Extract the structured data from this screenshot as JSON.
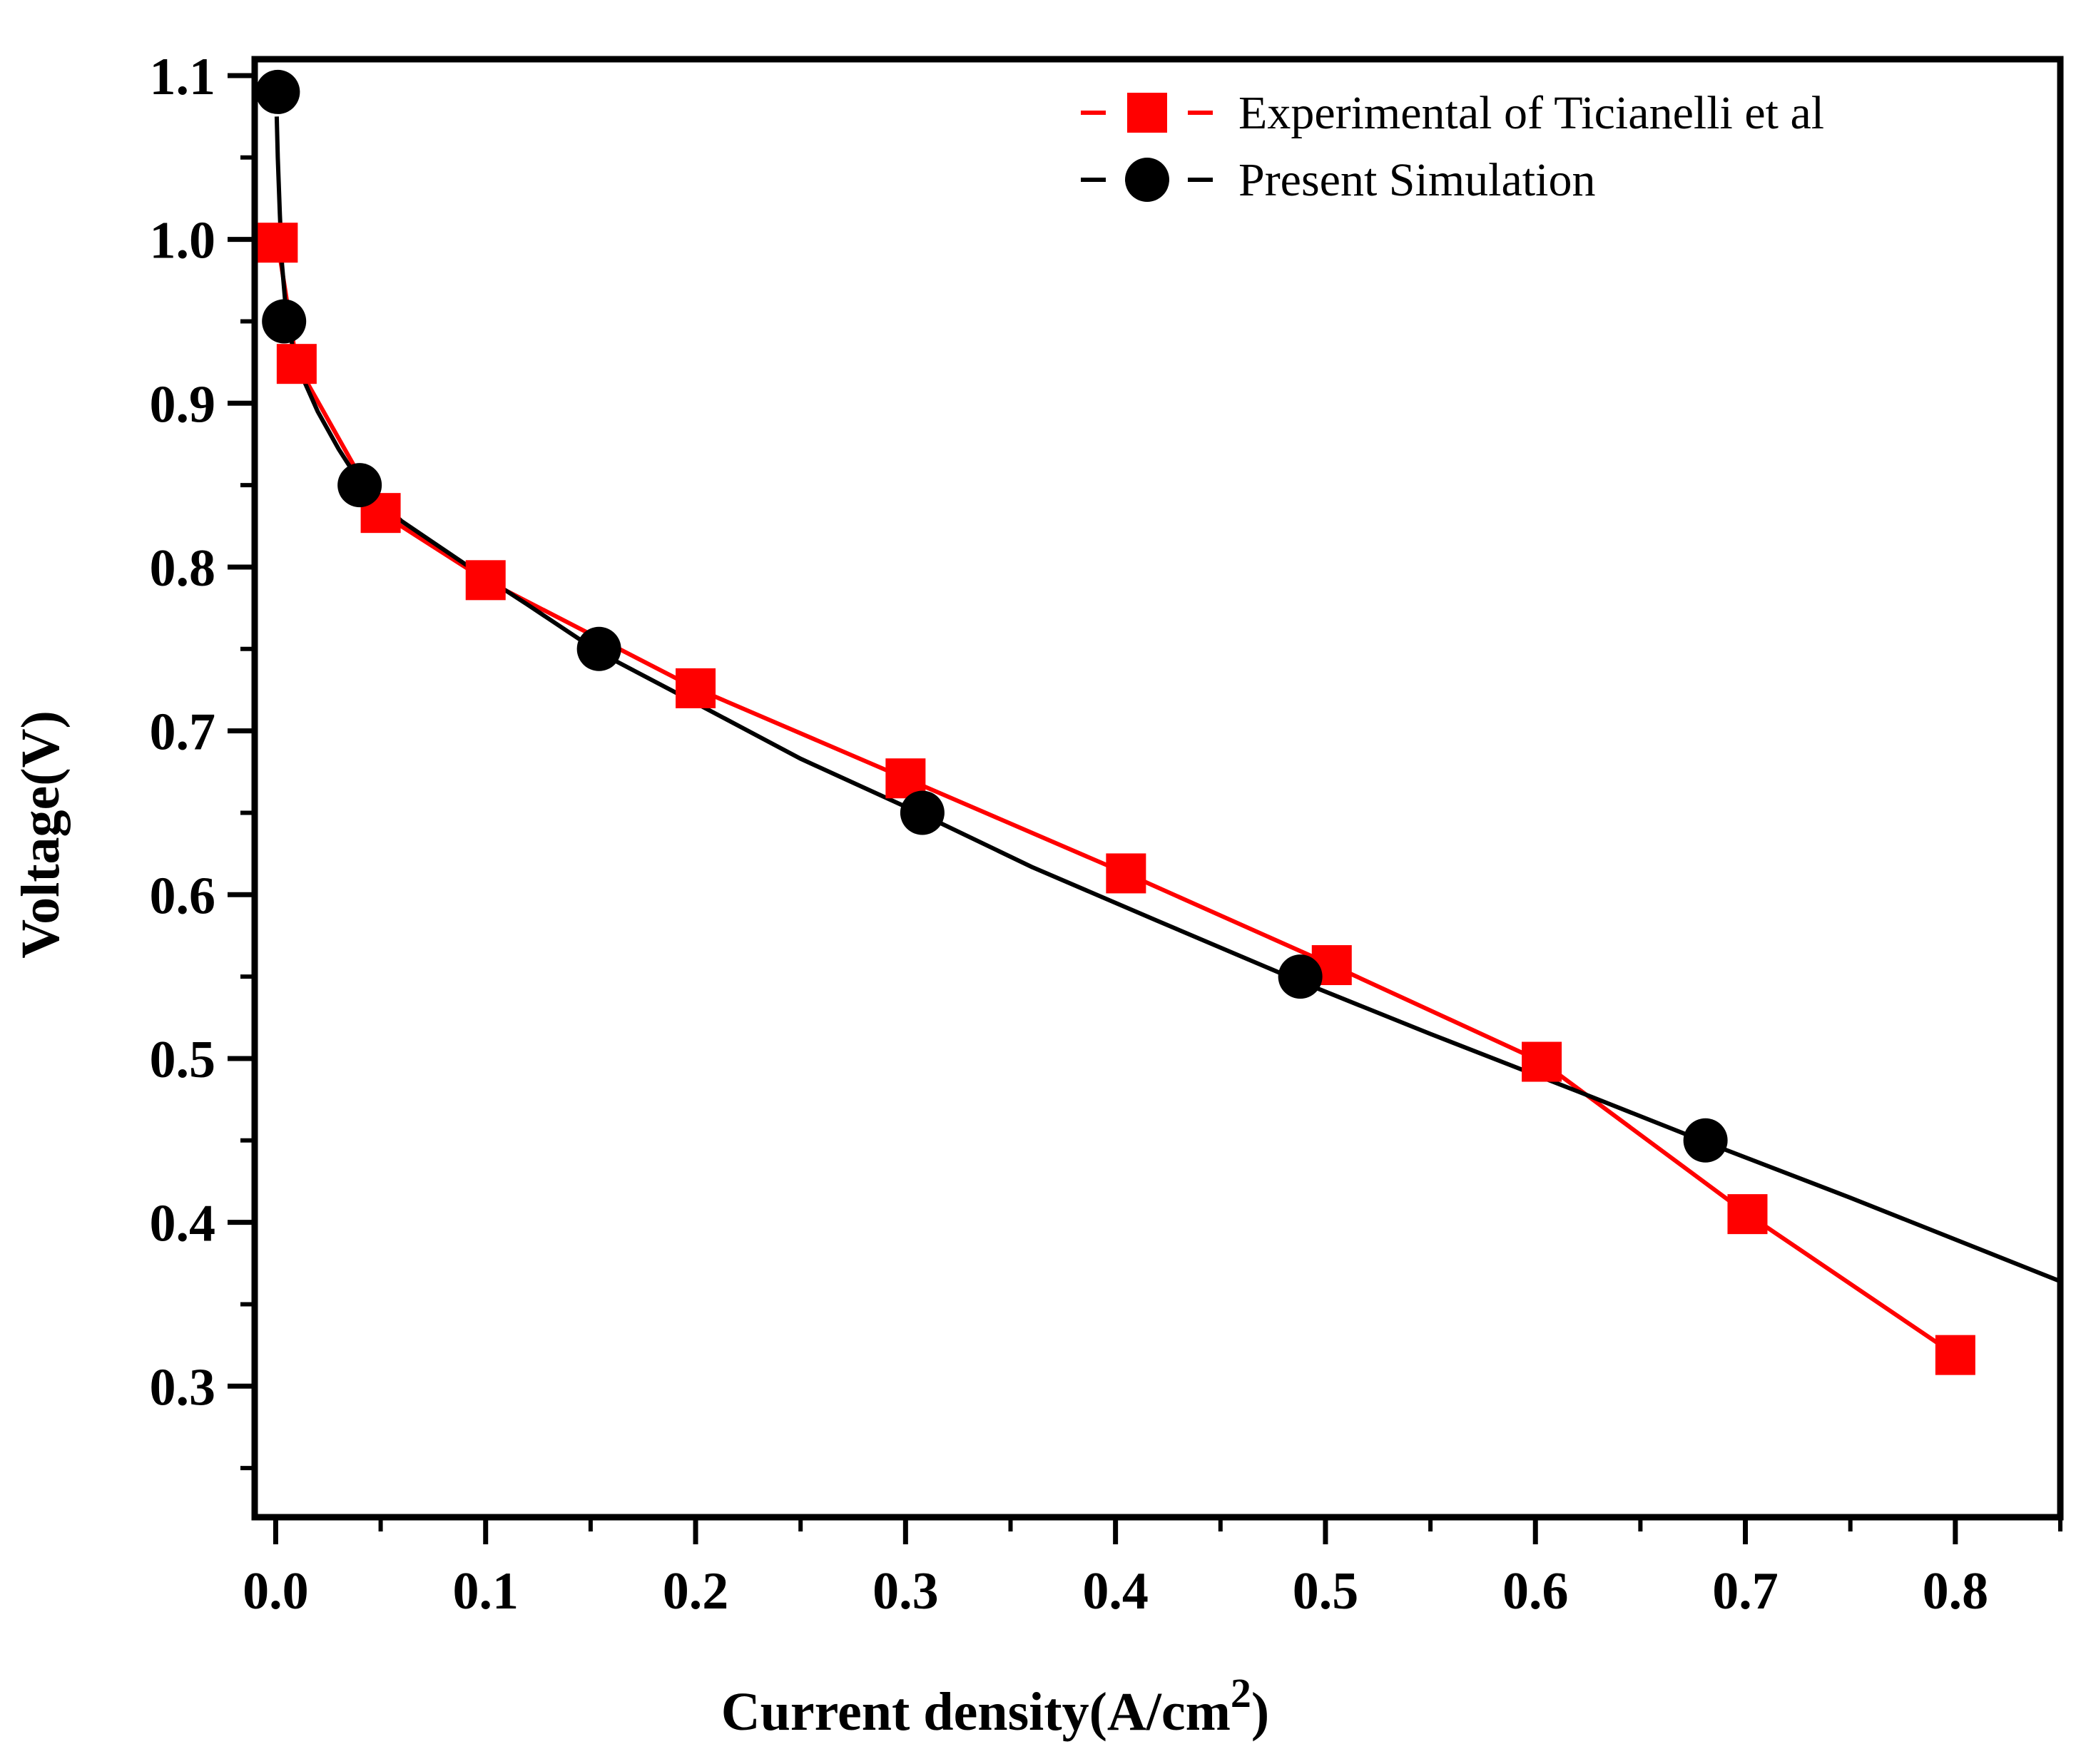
{
  "chart_data": {
    "type": "line",
    "title": "",
    "xlabel": "Current density(A/cm",
    "xlabel_superscript": "2",
    "xlabel_suffix": ")",
    "ylabel": "Voltage(V)",
    "xlim": [
      -0.01,
      0.85
    ],
    "ylim": [
      0.22,
      1.11
    ],
    "x_ticks": [
      0.0,
      0.1,
      0.2,
      0.3,
      0.4,
      0.5,
      0.6,
      0.7,
      0.8
    ],
    "x_tick_labels": [
      "0.0",
      "0.1",
      "0.2",
      "0.3",
      "0.4",
      "0.5",
      "0.6",
      "0.7",
      "0.8"
    ],
    "y_ticks": [
      0.3,
      0.4,
      0.5,
      0.6,
      0.7,
      0.8,
      0.9,
      1.0,
      1.1
    ],
    "y_tick_labels": [
      "0.3",
      "0.4",
      "0.5",
      "0.6",
      "0.7",
      "0.8",
      "0.9",
      "1.0",
      "1.1"
    ],
    "grid": false,
    "legend_position": "top-right",
    "series": [
      {
        "name": "Experimental of Ticianelli et al",
        "color": "#ff0000",
        "marker": "square",
        "x": [
          0.001,
          0.01,
          0.05,
          0.1,
          0.2,
          0.3,
          0.405,
          0.503,
          0.603,
          0.701,
          0.8
        ],
        "y": [
          0.998,
          0.924,
          0.833,
          0.792,
          0.726,
          0.671,
          0.613,
          0.557,
          0.498,
          0.405,
          0.319
        ]
      },
      {
        "name": "Present Simulation",
        "color": "#000000",
        "marker": "circle",
        "x": [
          0.001,
          0.004,
          0.04,
          0.154,
          0.308,
          0.488,
          0.681
        ],
        "y": [
          1.09,
          0.95,
          0.85,
          0.75,
          0.65,
          0.55,
          0.45
        ]
      }
    ],
    "simulation_fit_curve": {
      "x": [
        0.0005,
        0.001,
        0.002,
        0.003,
        0.005,
        0.008,
        0.012,
        0.02,
        0.03,
        0.04,
        0.06,
        0.09,
        0.12,
        0.154,
        0.2,
        0.25,
        0.308,
        0.36,
        0.42,
        0.488,
        0.55,
        0.62,
        0.681,
        0.75,
        0.85
      ],
      "y": [
        1.075,
        1.05,
        1.015,
        0.985,
        0.955,
        0.935,
        0.918,
        0.895,
        0.872,
        0.852,
        0.828,
        0.802,
        0.777,
        0.748,
        0.717,
        0.683,
        0.649,
        0.617,
        0.584,
        0.547,
        0.515,
        0.48,
        0.449,
        0.415,
        0.364
      ]
    }
  }
}
